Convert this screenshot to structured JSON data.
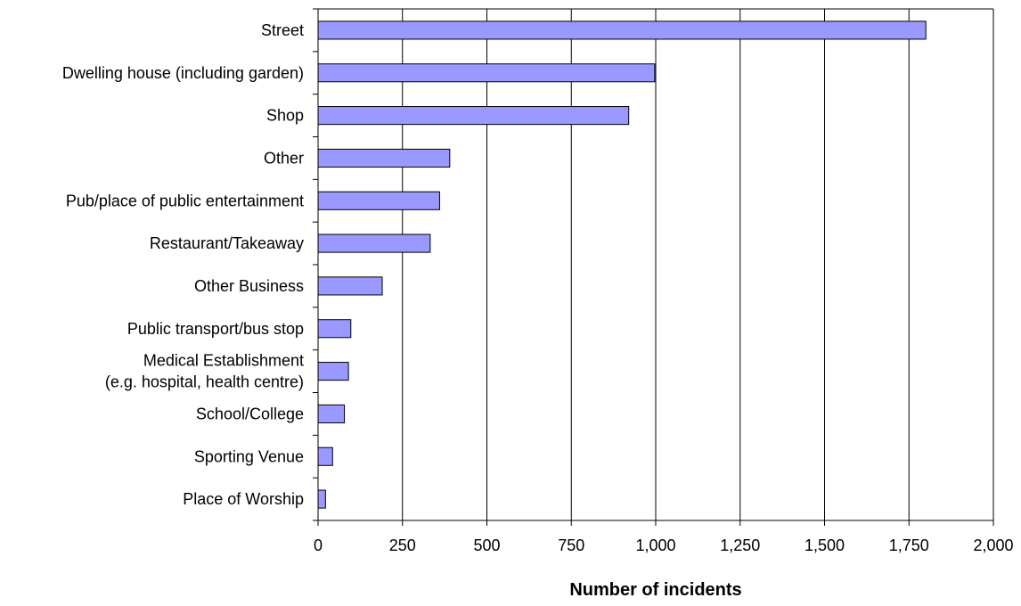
{
  "chart_data": {
    "type": "bar",
    "orientation": "horizontal",
    "categories": [
      "Street",
      "Dwelling house (including garden)",
      "Shop",
      "Other",
      "Pub/place of public entertainment",
      "Restaurant/Takeaway",
      "Other Business",
      "Public transport/bus stop",
      "Medical Establishment\n(e.g. hospital, health centre)",
      "School/College",
      "Sporting Venue",
      "Place of Worship"
    ],
    "values": [
      1800,
      997,
      920,
      390,
      360,
      332,
      190,
      97,
      90,
      78,
      43,
      22
    ],
    "xlabel": "Number of incidents",
    "ylabel": "",
    "xlim": [
      0,
      2000
    ],
    "x_ticks": [
      "0",
      "250",
      "500",
      "750",
      "1,000",
      "1,250",
      "1,500",
      "1,750",
      "2,000"
    ],
    "grid": "vertical",
    "legend": "none",
    "bar_color": "#9999ff",
    "bar_edge_color": "#000000"
  }
}
